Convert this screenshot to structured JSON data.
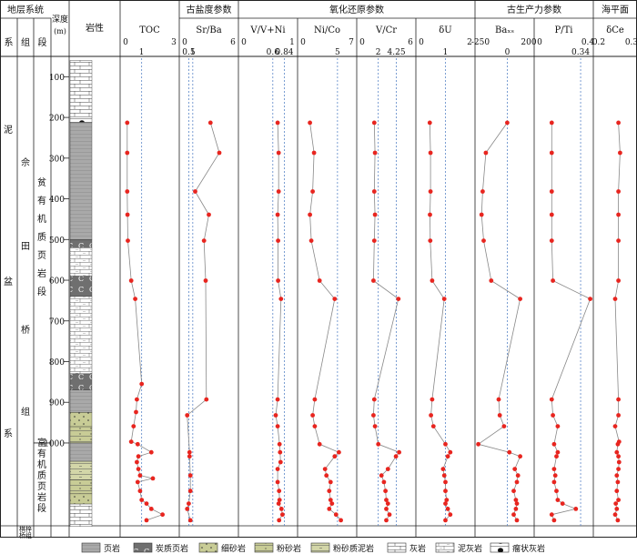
{
  "chart_data": {
    "type": "scatter",
    "strat_header": {
      "system_group": "地层系统",
      "sub": [
        "系",
        "组",
        "段"
      ]
    },
    "depth_header": "深度\n(m)",
    "lith_header": "岩性",
    "system_label": [
      "泥",
      "盆",
      "系"
    ],
    "formation_label": [
      "佘",
      "田",
      "桥",
      "组"
    ],
    "member1_label": [
      "贫",
      "有",
      "机",
      "质",
      "页",
      "岩",
      "段"
    ],
    "member2_label": [
      "富",
      "有",
      "机",
      "质",
      "页",
      "岩",
      "段"
    ],
    "bottom_label": [
      "棋梓",
      "桥组"
    ],
    "depth_ticks": [
      100,
      200,
      300,
      400,
      500,
      600,
      700,
      800,
      900,
      1000
    ],
    "groups": [
      {
        "label": "古盐度参数",
        "cols": [
          1
        ]
      },
      {
        "label": "氧化还原参数",
        "cols": [
          2,
          3,
          4,
          5
        ]
      },
      {
        "label": "古生产力参数",
        "cols": [
          6,
          7
        ]
      },
      {
        "label": "海平面",
        "cols": [
          8
        ]
      }
    ],
    "series": [
      {
        "name": "TOC",
        "min": 0,
        "max": 3,
        "ticks": [
          "0",
          "3"
        ],
        "ref": [
          1
        ],
        "ref_labels": [
          "1"
        ],
        "points": [
          [
            213,
            0.1
          ],
          [
            287,
            0.1
          ],
          [
            382,
            0.1
          ],
          [
            439,
            0.12
          ],
          [
            503,
            0.14
          ],
          [
            601,
            0.35
          ],
          [
            646,
            0.6
          ],
          [
            855,
            1.0
          ],
          [
            893,
            0.7
          ],
          [
            924,
            0.65
          ],
          [
            959,
            0.5
          ],
          [
            997,
            0.35
          ],
          [
            1003,
            0.75
          ],
          [
            1023,
            1.6
          ],
          [
            1033,
            0.8
          ],
          [
            1047,
            0.7
          ],
          [
            1064,
            0.8
          ],
          [
            1080,
            0.9
          ],
          [
            1087,
            1.7
          ],
          [
            1096,
            0.75
          ],
          [
            1118,
            0.9
          ],
          [
            1140,
            1.0
          ],
          [
            1149,
            1.3
          ],
          [
            1162,
            1.6
          ],
          [
            1176,
            2.3
          ],
          [
            1190,
            1.3
          ]
        ]
      },
      {
        "name": "Sr/Ba",
        "min": 0,
        "max": 6,
        "ticks": [
          "0",
          "6"
        ],
        "ref": [
          0.5,
          1
        ],
        "ref_labels": [
          "0.5",
          "1"
        ],
        "points": [
          [
            213,
            3.2
          ],
          [
            287,
            4.3
          ],
          [
            382,
            1.3
          ],
          [
            439,
            3.0
          ],
          [
            503,
            2.4
          ],
          [
            601,
            2.6
          ],
          [
            893,
            2.7
          ],
          [
            932,
            0.3
          ],
          [
            1023,
            0.6
          ],
          [
            1033,
            0.6
          ],
          [
            1080,
            0.7
          ],
          [
            1118,
            0.7
          ],
          [
            1149,
            0.5
          ],
          [
            1162,
            0.3
          ],
          [
            1190,
            0.7
          ]
        ]
      },
      {
        "name": "V/V+Ni",
        "min": 0,
        "max": 1,
        "ticks": [
          "0",
          "1"
        ],
        "ref": [
          0.6,
          0.84
        ],
        "ref_labels": [
          "0.6",
          "0.84"
        ],
        "points": [
          [
            213,
            0.7
          ],
          [
            287,
            0.72
          ],
          [
            382,
            0.72
          ],
          [
            439,
            0.7
          ],
          [
            503,
            0.71
          ],
          [
            601,
            0.71
          ],
          [
            646,
            0.77
          ],
          [
            893,
            0.7
          ],
          [
            932,
            0.66
          ],
          [
            959,
            0.7
          ],
          [
            1003,
            0.74
          ],
          [
            1023,
            0.75
          ],
          [
            1047,
            0.76
          ],
          [
            1064,
            0.7
          ],
          [
            1096,
            0.7
          ],
          [
            1118,
            0.73
          ],
          [
            1140,
            0.74
          ],
          [
            1149,
            0.72
          ],
          [
            1162,
            0.78
          ],
          [
            1176,
            0.8
          ],
          [
            1190,
            0.73
          ]
        ]
      },
      {
        "name": "Ni/Co",
        "min": 0,
        "max": 7,
        "ticks": [
          "0",
          "7"
        ],
        "ref": [
          5
        ],
        "ref_labels": [
          "5"
        ],
        "points": [
          [
            213,
            1.0
          ],
          [
            287,
            1.6
          ],
          [
            382,
            1.4
          ],
          [
            439,
            1.0
          ],
          [
            503,
            1.2
          ],
          [
            601,
            2.4
          ],
          [
            646,
            4.6
          ],
          [
            893,
            1.7
          ],
          [
            932,
            1.4
          ],
          [
            959,
            1.7
          ],
          [
            1003,
            2.4
          ],
          [
            1023,
            5.2
          ],
          [
            1033,
            4.6
          ],
          [
            1064,
            3.2
          ],
          [
            1080,
            3.4
          ],
          [
            1096,
            4.0
          ],
          [
            1118,
            3.8
          ],
          [
            1140,
            4.0
          ],
          [
            1149,
            4.2
          ],
          [
            1162,
            3.8
          ],
          [
            1176,
            4.8
          ],
          [
            1190,
            5.5
          ]
        ]
      },
      {
        "name": "V/Cr",
        "min": 0,
        "max": 6,
        "ticks": [
          "0",
          "6"
        ],
        "ref": [
          2,
          4.25
        ],
        "ref_labels": [
          "2",
          "4.25"
        ],
        "points": [
          [
            213,
            1.5
          ],
          [
            287,
            1.6
          ],
          [
            382,
            1.5
          ],
          [
            439,
            1.6
          ],
          [
            503,
            1.5
          ],
          [
            601,
            1.4
          ],
          [
            646,
            4.5
          ],
          [
            893,
            1.5
          ],
          [
            932,
            1.4
          ],
          [
            959,
            1.6
          ],
          [
            1003,
            2.0
          ],
          [
            1023,
            4.6
          ],
          [
            1033,
            4.2
          ],
          [
            1064,
            3.2
          ],
          [
            1080,
            2.4
          ],
          [
            1096,
            2.7
          ],
          [
            1118,
            2.9
          ],
          [
            1140,
            3.0
          ],
          [
            1149,
            3.2
          ],
          [
            1162,
            3.0
          ],
          [
            1176,
            3.4
          ],
          [
            1190,
            3.0
          ]
        ]
      },
      {
        "name": "δU",
        "min": 0,
        "max": 2,
        "ticks": [
          "0",
          "2"
        ],
        "ref": [
          1
        ],
        "ref_labels": [
          "1"
        ],
        "points": [
          [
            213,
            0.35
          ],
          [
            287,
            0.38
          ],
          [
            382,
            0.38
          ],
          [
            439,
            0.36
          ],
          [
            503,
            0.37
          ],
          [
            601,
            0.45
          ],
          [
            646,
            0.95
          ],
          [
            893,
            0.45
          ],
          [
            932,
            0.4
          ],
          [
            959,
            0.5
          ],
          [
            1003,
            1.0
          ],
          [
            1023,
            1.2
          ],
          [
            1033,
            1.1
          ],
          [
            1064,
            0.9
          ],
          [
            1080,
            0.95
          ],
          [
            1096,
            1.0
          ],
          [
            1118,
            1.0
          ],
          [
            1140,
            1.05
          ],
          [
            1149,
            1.0
          ],
          [
            1162,
            1.1
          ],
          [
            1176,
            1.2
          ],
          [
            1190,
            1.0
          ]
        ]
      },
      {
        "name": "Baₓₛ",
        "min": -250,
        "max": 200,
        "ticks": [
          "-250",
          "200"
        ],
        "ref": [
          0
        ],
        "ref_labels": [
          "0"
        ],
        "points": [
          [
            213,
            0
          ],
          [
            287,
            -200
          ],
          [
            382,
            -230
          ],
          [
            439,
            -240
          ],
          [
            503,
            -220
          ],
          [
            601,
            -150
          ],
          [
            646,
            120
          ],
          [
            893,
            -80
          ],
          [
            932,
            -70
          ],
          [
            959,
            -30
          ],
          [
            1003,
            -270
          ],
          [
            1023,
            20
          ],
          [
            1033,
            120
          ],
          [
            1064,
            70
          ],
          [
            1080,
            100
          ],
          [
            1096,
            90
          ],
          [
            1118,
            60
          ],
          [
            1140,
            80
          ],
          [
            1149,
            90
          ],
          [
            1162,
            80
          ],
          [
            1176,
            60
          ],
          [
            1190,
            90
          ]
        ]
      },
      {
        "name": "P/Ti",
        "min": 0,
        "max": 0.4,
        "ticks": [
          "0",
          "0.4"
        ],
        "ref": [
          0.34
        ],
        "ref_labels": [
          "0.34"
        ],
        "points": [
          [
            213,
            0.1
          ],
          [
            287,
            0.1
          ],
          [
            382,
            0.1
          ],
          [
            439,
            0.1
          ],
          [
            503,
            0.1
          ],
          [
            601,
            0.11
          ],
          [
            646,
            0.42
          ],
          [
            893,
            0.1
          ],
          [
            932,
            0.11
          ],
          [
            959,
            0.15
          ],
          [
            1003,
            0.12
          ],
          [
            1023,
            0.15
          ],
          [
            1033,
            0.14
          ],
          [
            1064,
            0.12
          ],
          [
            1080,
            0.13
          ],
          [
            1096,
            0.12
          ],
          [
            1118,
            0.14
          ],
          [
            1140,
            0.15
          ],
          [
            1149,
            0.19
          ],
          [
            1162,
            0.3
          ],
          [
            1176,
            0.1
          ],
          [
            1190,
            0.12
          ]
        ]
      },
      {
        "name": "δCe",
        "min": 0.2,
        "max": 0.3,
        "ticks": [
          "0.2",
          "0.3"
        ],
        "ref": [],
        "ref_labels": [],
        "points": [
          [
            213,
            0.26
          ],
          [
            287,
            0.265
          ],
          [
            382,
            0.26
          ],
          [
            439,
            0.26
          ],
          [
            503,
            0.26
          ],
          [
            601,
            0.26
          ],
          [
            646,
            0.25
          ],
          [
            893,
            0.26
          ],
          [
            932,
            0.26
          ],
          [
            959,
            0.25
          ],
          [
            997,
            0.262
          ],
          [
            1003,
            0.258
          ],
          [
            1023,
            0.255
          ],
          [
            1033,
            0.26
          ],
          [
            1047,
            0.262
          ],
          [
            1064,
            0.26
          ],
          [
            1080,
            0.255
          ],
          [
            1096,
            0.258
          ],
          [
            1118,
            0.255
          ],
          [
            1140,
            0.26
          ],
          [
            1149,
            0.252
          ],
          [
            1162,
            0.255
          ],
          [
            1176,
            0.25
          ],
          [
            1190,
            0.258
          ]
        ]
      }
    ],
    "lithology": [
      {
        "from": 60,
        "to": 198,
        "type": "limestone"
      },
      {
        "from": 198,
        "to": 212,
        "type": "nodular"
      },
      {
        "from": 212,
        "to": 500,
        "type": "shale"
      },
      {
        "from": 500,
        "to": 520,
        "type": "carbonaceous"
      },
      {
        "from": 520,
        "to": 590,
        "type": "marl"
      },
      {
        "from": 590,
        "to": 640,
        "type": "carbonaceous"
      },
      {
        "from": 640,
        "to": 830,
        "type": "marl"
      },
      {
        "from": 830,
        "to": 870,
        "type": "carbonaceous"
      },
      {
        "from": 870,
        "to": 925,
        "type": "shale"
      },
      {
        "from": 925,
        "to": 960,
        "type": "fine_sandstone"
      },
      {
        "from": 960,
        "to": 1000,
        "type": "siltstone"
      },
      {
        "from": 1000,
        "to": 1045,
        "type": "shale"
      },
      {
        "from": 1045,
        "to": 1090,
        "type": "silty_mudstone"
      },
      {
        "from": 1090,
        "to": 1125,
        "type": "siltstone"
      },
      {
        "from": 1125,
        "to": 1150,
        "type": "fine_sandstone"
      },
      {
        "from": 1150,
        "to": 1205,
        "type": "limestone"
      }
    ],
    "legend": [
      {
        "type": "shale",
        "label": "页岩"
      },
      {
        "type": "carbonaceous",
        "label": "炭质页岩"
      },
      {
        "type": "fine_sandstone",
        "label": "细砂岩"
      },
      {
        "type": "siltstone",
        "label": "粉砂岩"
      },
      {
        "type": "silty_mudstone",
        "label": "粉砂质泥岩"
      },
      {
        "type": "limestone",
        "label": "灰岩"
      },
      {
        "type": "marl",
        "label": "泥灰岩"
      },
      {
        "type": "nodular",
        "label": "瘤状灰岩"
      }
    ],
    "colors": {
      "point": "#e8251f",
      "line": "#888888",
      "ref": "#5b86c8",
      "shale": "#a9a9a9",
      "carbonaceous": "#6f6f6f",
      "sand": "#c8cc96",
      "limestone": "#ffffff"
    }
  }
}
